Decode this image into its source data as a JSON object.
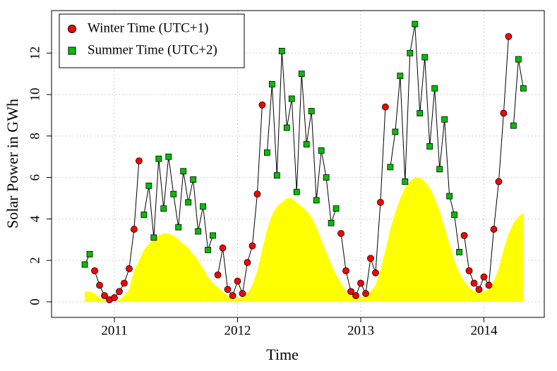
{
  "chart_data": {
    "type": "line",
    "x_label": "Time",
    "y_label": "Solar Power in GWh",
    "x": [
      2010.76,
      2010.8,
      2010.84,
      2010.88,
      2010.92,
      2010.96,
      2011.0,
      2011.04,
      2011.08,
      2011.12,
      2011.16,
      2011.2,
      2011.24,
      2011.28,
      2011.32,
      2011.36,
      2011.4,
      2011.44,
      2011.48,
      2011.52,
      2011.56,
      2011.6,
      2011.64,
      2011.68,
      2011.72,
      2011.76,
      2011.8,
      2011.84,
      2011.88,
      2011.92,
      2011.96,
      2012.0,
      2012.04,
      2012.08,
      2012.12,
      2012.16,
      2012.2,
      2012.24,
      2012.28,
      2012.32,
      2012.36,
      2012.4,
      2012.44,
      2012.48,
      2012.52,
      2012.56,
      2012.6,
      2012.64,
      2012.68,
      2012.72,
      2012.76,
      2012.8,
      2012.84,
      2012.88,
      2012.92,
      2012.96,
      2013.0,
      2013.04,
      2013.08,
      2013.12,
      2013.16,
      2013.2,
      2013.24,
      2013.28,
      2013.32,
      2013.36,
      2013.4,
      2013.44,
      2013.48,
      2013.52,
      2013.56,
      2013.6,
      2013.64,
      2013.68,
      2013.72,
      2013.76,
      2013.8,
      2013.84,
      2013.88,
      2013.92,
      2013.96,
      2014.0,
      2014.04,
      2014.08,
      2014.12,
      2014.16,
      2014.2,
      2014.24,
      2014.28,
      2014.32
    ],
    "series": [
      {
        "name": "Winter Time (UTC+1)",
        "color": "#ff0000",
        "marker": "circle",
        "values": [
          null,
          null,
          1.5,
          0.8,
          0.3,
          0.1,
          0.2,
          0.5,
          0.9,
          1.6,
          3.5,
          6.8,
          null,
          null,
          null,
          null,
          null,
          null,
          null,
          null,
          null,
          null,
          null,
          null,
          null,
          null,
          null,
          1.3,
          2.6,
          0.6,
          0.3,
          1.0,
          0.4,
          1.9,
          2.7,
          5.2,
          9.5,
          null,
          null,
          null,
          null,
          null,
          null,
          null,
          null,
          null,
          null,
          null,
          null,
          null,
          null,
          null,
          3.3,
          1.5,
          0.5,
          0.3,
          0.9,
          0.4,
          2.1,
          1.4,
          4.8,
          9.4,
          null,
          null,
          null,
          null,
          null,
          null,
          null,
          null,
          null,
          null,
          null,
          null,
          null,
          null,
          null,
          3.2,
          1.5,
          0.9,
          0.6,
          1.2,
          0.8,
          3.5,
          5.8,
          9.1,
          12.8,
          null,
          null,
          null
        ]
      },
      {
        "name": "Summer Time (UTC+2)",
        "color": "#00c000",
        "marker": "square",
        "values": [
          1.8,
          2.3,
          null,
          null,
          null,
          null,
          null,
          null,
          null,
          null,
          null,
          null,
          4.2,
          5.6,
          3.1,
          6.9,
          4.5,
          7.0,
          5.2,
          3.6,
          6.3,
          4.8,
          5.9,
          3.4,
          4.6,
          2.5,
          3.2,
          null,
          null,
          null,
          null,
          null,
          null,
          null,
          null,
          null,
          null,
          7.2,
          10.5,
          6.1,
          12.1,
          8.4,
          9.8,
          5.3,
          11.0,
          7.6,
          9.2,
          4.9,
          7.3,
          6.0,
          3.8,
          4.5,
          null,
          null,
          null,
          null,
          null,
          null,
          null,
          null,
          null,
          null,
          6.5,
          8.2,
          10.9,
          5.8,
          12.0,
          13.4,
          9.1,
          11.8,
          7.5,
          10.3,
          6.4,
          8.8,
          5.1,
          4.2,
          2.4,
          null,
          null,
          null,
          null,
          null,
          null,
          null,
          null,
          null,
          null,
          8.5,
          11.7,
          10.3
        ]
      }
    ],
    "area": {
      "color": "#ffff00",
      "values": [
        0.5,
        0.5,
        0.4,
        0.2,
        0.1,
        0,
        0,
        0.1,
        0.3,
        0.6,
        1.5,
        2.0,
        2.5,
        2.8,
        3.0,
        3.2,
        3.3,
        3.3,
        3.2,
        3.0,
        2.8,
        2.6,
        2.3,
        2.0,
        1.6,
        1.2,
        0.9,
        0.7,
        0.5,
        0.3,
        0.2,
        0.2,
        0.2,
        0.4,
        0.8,
        1.5,
        2.5,
        3.5,
        4.2,
        4.6,
        4.8,
        5.0,
        5.0,
        4.8,
        4.6,
        4.4,
        4.1,
        3.6,
        3.0,
        2.4,
        1.8,
        1.3,
        0.9,
        0.5,
        0.3,
        0.2,
        0.2,
        0.3,
        0.5,
        0.8,
        1.5,
        2.5,
        3.5,
        4.3,
        5.0,
        5.5,
        5.8,
        6.0,
        6.0,
        5.8,
        5.5,
        5.0,
        4.4,
        3.6,
        2.8,
        2.0,
        1.4,
        1.0,
        0.7,
        0.5,
        0.5,
        0.5,
        0.6,
        1.0,
        1.6,
        2.5,
        3.3,
        3.8,
        4.1,
        4.3
      ]
    },
    "xlim": [
      2010.49,
      2014.49
    ],
    "ylim": [
      -0.75,
      14.05
    ],
    "xticks": [
      2011,
      2012,
      2013,
      2014
    ],
    "yticks": [
      0,
      2,
      4,
      6,
      8,
      10,
      12
    ],
    "grid": true,
    "legend": "top-left"
  }
}
